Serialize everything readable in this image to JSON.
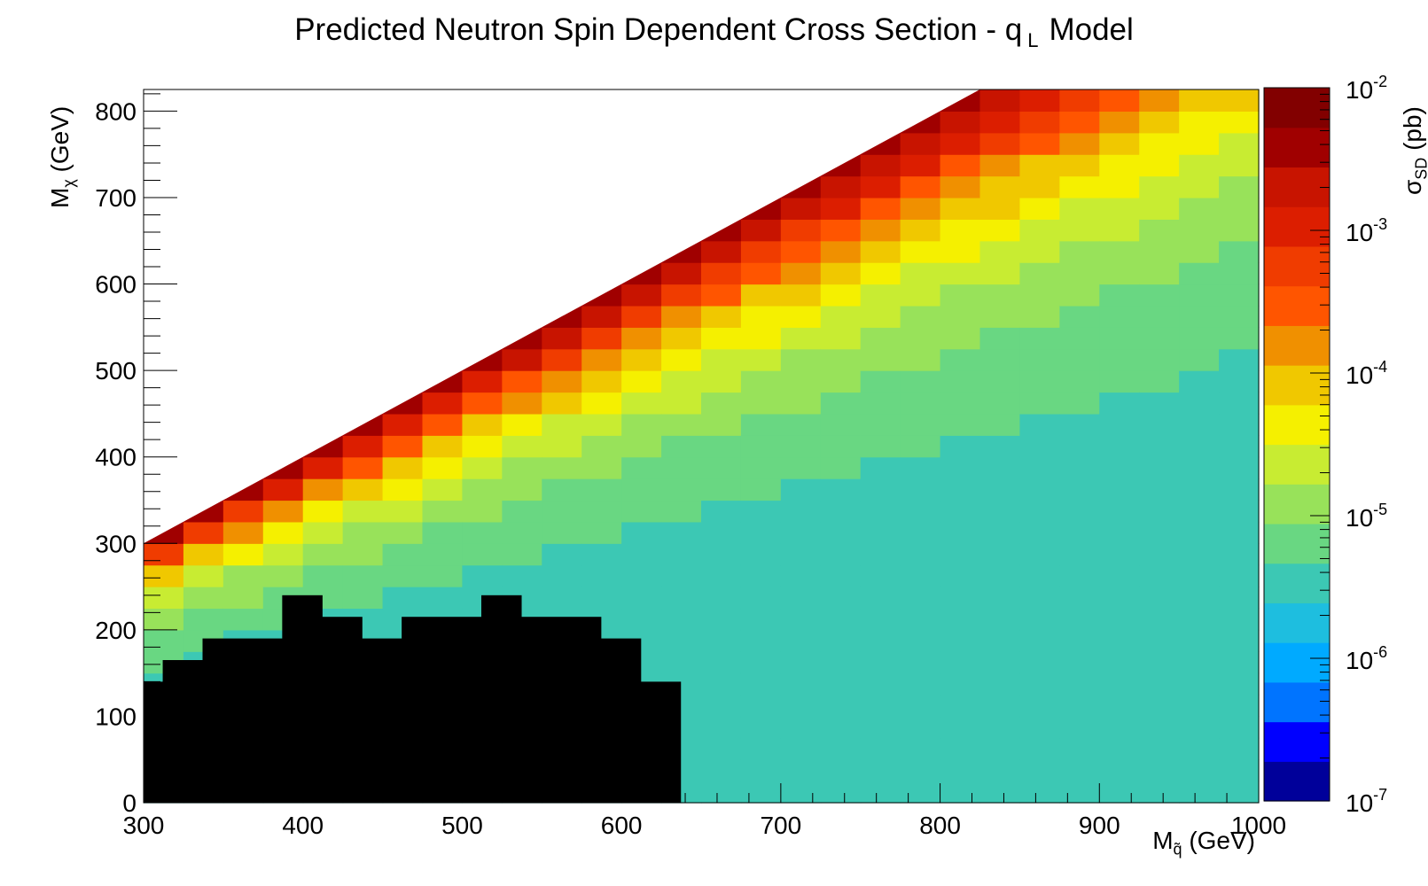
{
  "chart_data": {
    "type": "heatmap",
    "title_main": "Predicted Neutron Spin Dependent Cross Section - q",
    "title_sub": "L",
    "title_tail": "Model",
    "xlabel_main": "M",
    "xlabel_sub": "q̃",
    "xlabel_unit": "(GeV)",
    "ylabel_main": "M",
    "ylabel_sub": "χ",
    "ylabel_unit": "(GeV)",
    "zlabel_main": "σ",
    "zlabel_sub": "SD",
    "zlabel_unit": "(pb)",
    "xlim": [
      300,
      1000
    ],
    "ylim": [
      0,
      825
    ],
    "x_ticks": [
      "300",
      "400",
      "500",
      "600",
      "700",
      "800",
      "900",
      "1000"
    ],
    "y_ticks": [
      "0",
      "100",
      "200",
      "300",
      "400",
      "500",
      "600",
      "700",
      "800"
    ],
    "z_scale": "log",
    "zlim": [
      1e-07,
      0.01
    ],
    "z_ticks": [
      {
        "base": "10",
        "exp": "-7"
      },
      {
        "base": "10",
        "exp": "-6"
      },
      {
        "base": "10",
        "exp": "-5"
      },
      {
        "base": "10",
        "exp": "-4"
      },
      {
        "base": "10",
        "exp": "-3"
      },
      {
        "base": "10",
        "exp": "-2"
      }
    ],
    "boundary": "M_chi <= M_squark (white above)",
    "excluded_region_color": "#000000",
    "excluded_region_top": [
      {
        "x": [
          300,
          312
        ],
        "y": 140
      },
      {
        "x": [
          312,
          337
        ],
        "y": 165
      },
      {
        "x": [
          337,
          387
        ],
        "y": 190
      },
      {
        "x": [
          387,
          412
        ],
        "y": 240
      },
      {
        "x": [
          412,
          437
        ],
        "y": 215
      },
      {
        "x": [
          437,
          462
        ],
        "y": 190
      },
      {
        "x": [
          462,
          512
        ],
        "y": 215
      },
      {
        "x": [
          512,
          537
        ],
        "y": 240
      },
      {
        "x": [
          537,
          587
        ],
        "y": 215
      },
      {
        "x": [
          587,
          612
        ],
        "y": 190
      },
      {
        "x": [
          612,
          637
        ],
        "y": 140
      }
    ],
    "log10_sigma_model": "log10(sigma) depends on relative mass splitting d = (M_squark - M_chi) / M_squark; d<=0.02 -> ~-2.5, d~0.15 -> -4, d~0.4 -> -5.2, d>=0.8 -> ~-5.6",
    "colormap": [
      "#00009a",
      "#0000ff",
      "#0074ff",
      "#00aaff",
      "#1ebedf",
      "#3cc8b4",
      "#69d782",
      "#98e25a",
      "#c8ec32",
      "#f5f000",
      "#f0c800",
      "#f09000",
      "#ff5500",
      "#f03c00",
      "#dc1e00",
      "#c81400",
      "#a00000",
      "#820000"
    ]
  }
}
